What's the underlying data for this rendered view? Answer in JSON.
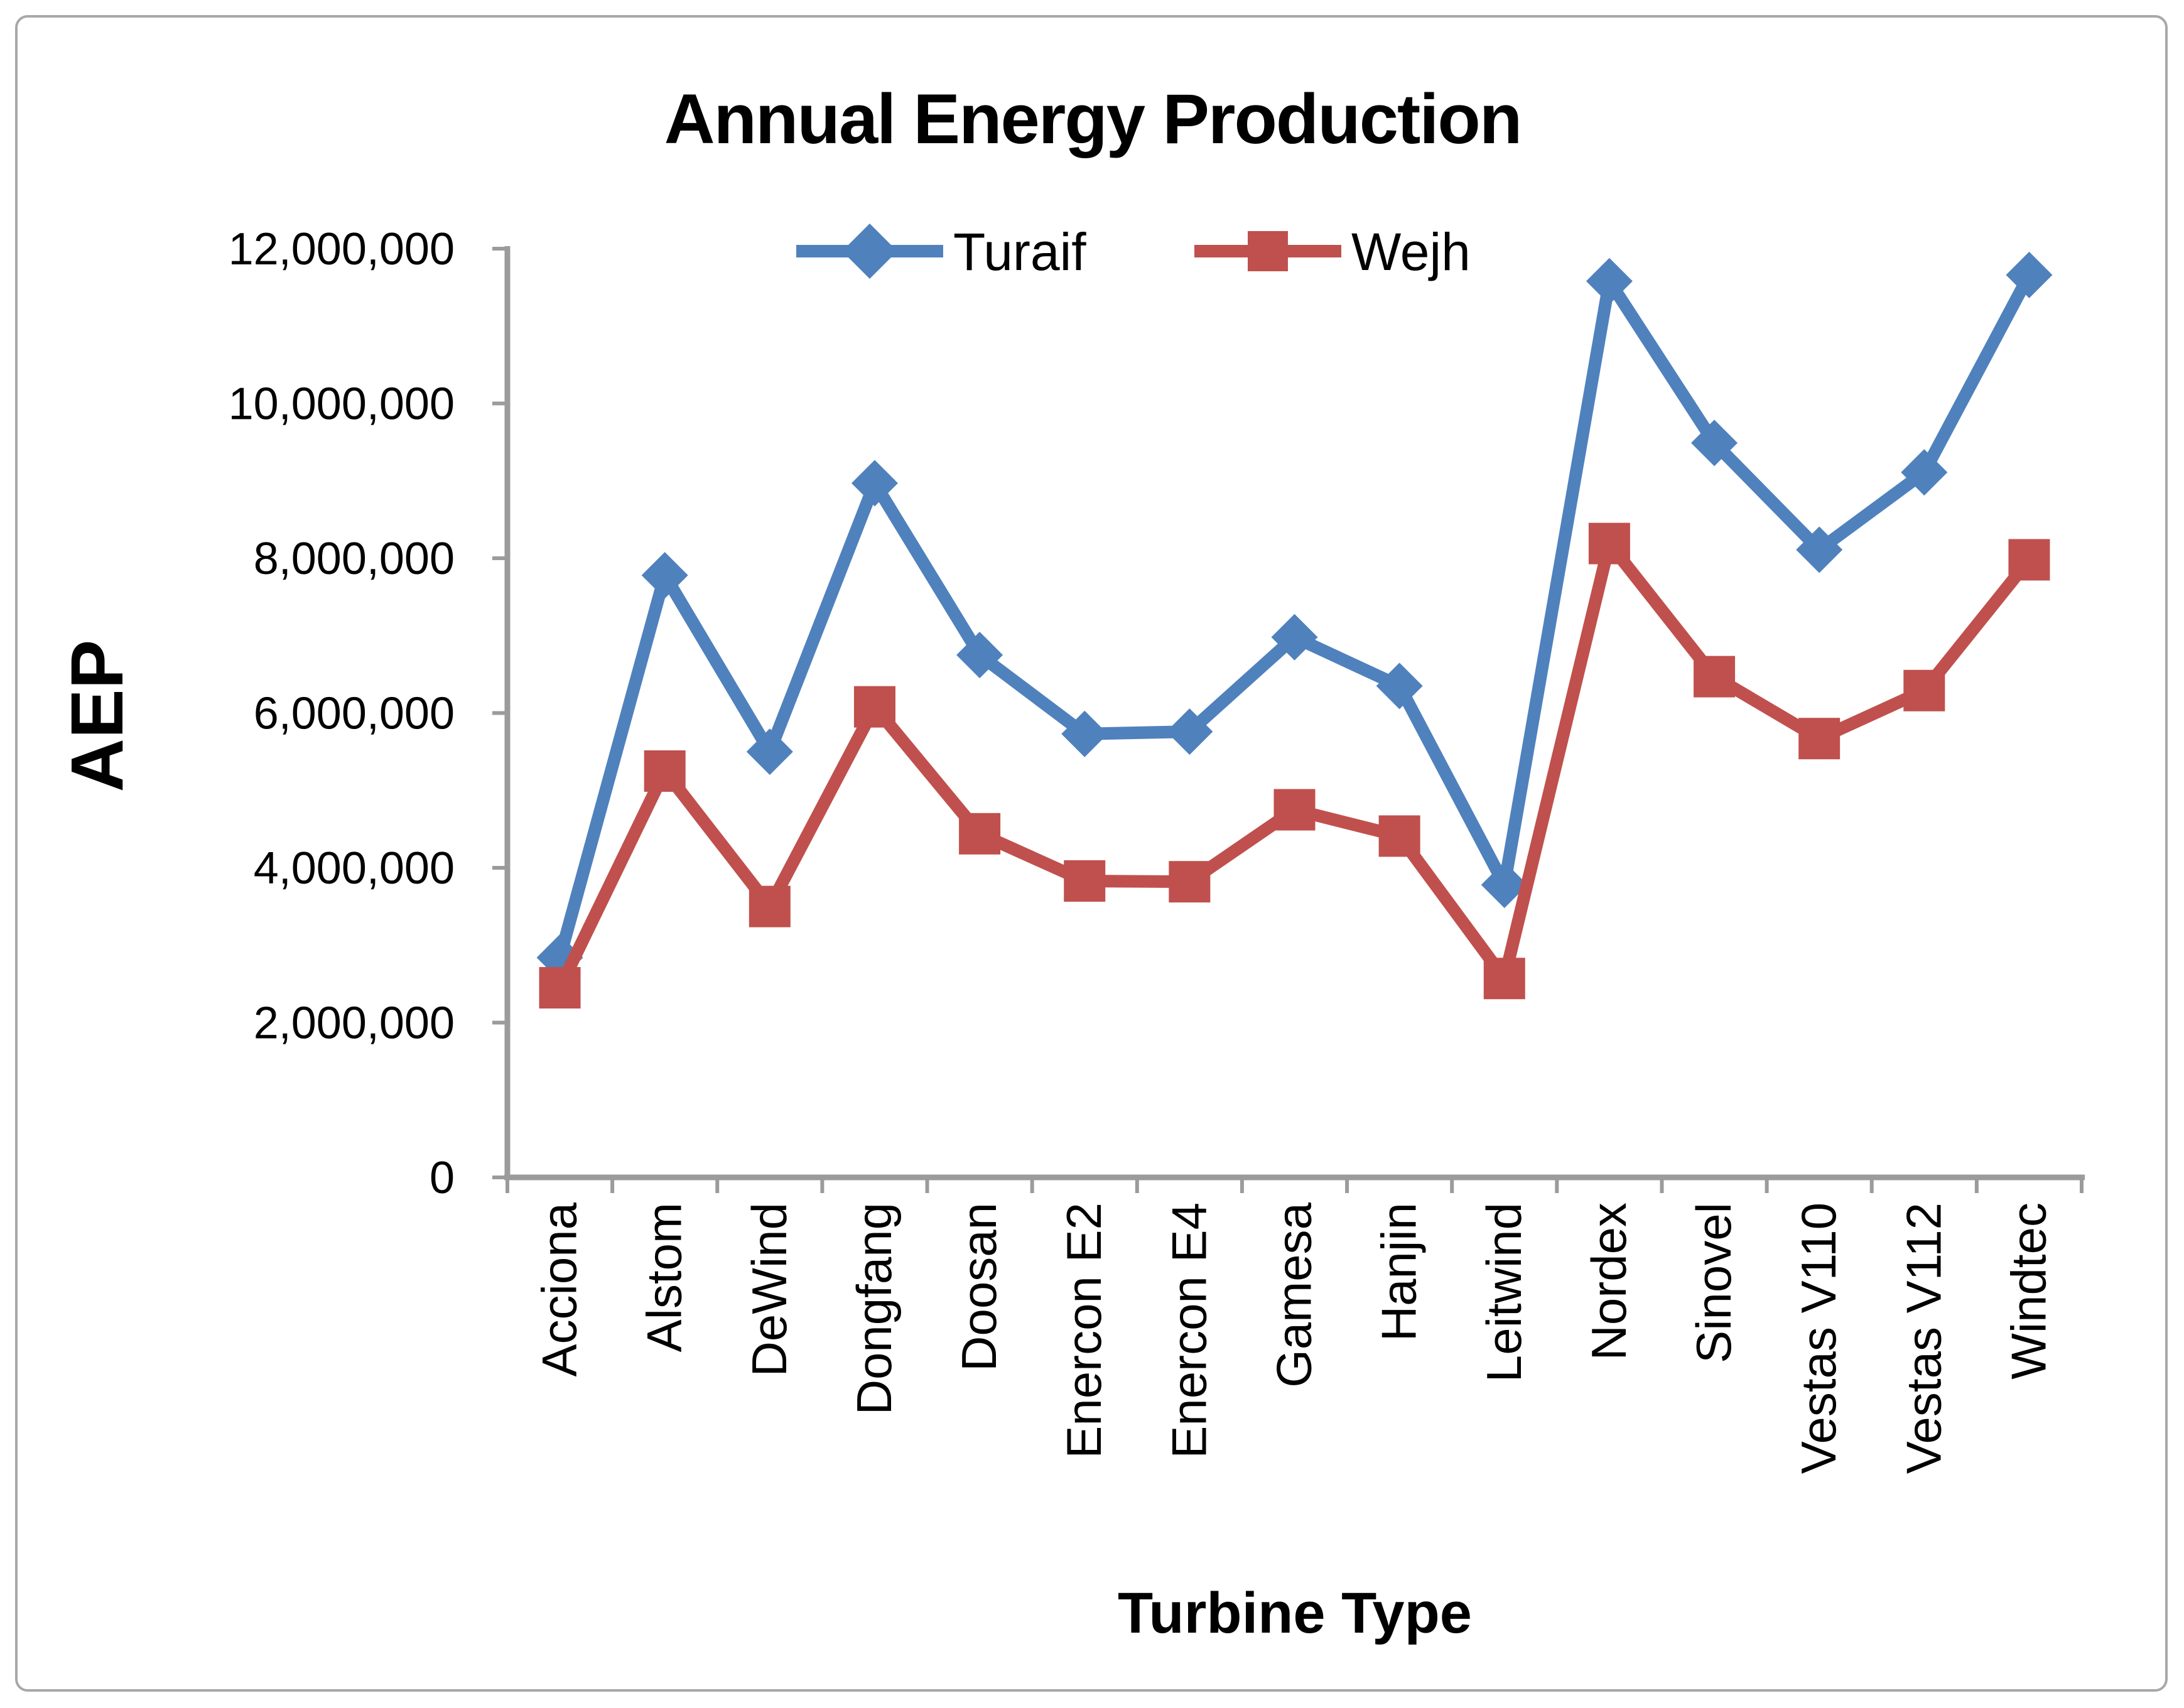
{
  "chart_data": {
    "type": "line",
    "title": "Annual Energy Production",
    "xlabel": "Turbine Type",
    "ylabel": "AEP",
    "ylim": [
      0,
      12000000
    ],
    "ytick_step": 2000000,
    "ytick_labels": [
      "0",
      "2,000,000",
      "4,000,000",
      "6,000,000",
      "8,000,000",
      "10,000,000",
      "12,000,000"
    ],
    "grid": false,
    "legend_position": "top-center",
    "axis_color": "#9b9b9b",
    "categories": [
      "Acciona",
      "Alstom",
      "DeWind",
      "Dongfang",
      "Doosan",
      "Enercon E2",
      "Enercon E4",
      "Gamesa",
      "Hanjin",
      "Leitwind",
      "Nordex",
      "Sinovel",
      "Vestas V110",
      "Vestas V112",
      "Windtec"
    ],
    "series": [
      {
        "name": "Turaif",
        "color": "#4F81BD",
        "marker": "diamond",
        "values": [
          2840000,
          7780000,
          5500000,
          8970000,
          6750000,
          5730000,
          5760000,
          6980000,
          6350000,
          3780000,
          11580000,
          9490000,
          8110000,
          9110000,
          11660000
        ]
      },
      {
        "name": "Wejh",
        "color": "#C0504D",
        "marker": "square",
        "values": [
          2450000,
          5250000,
          3500000,
          6080000,
          4440000,
          3830000,
          3820000,
          4750000,
          4410000,
          2570000,
          8190000,
          6470000,
          5670000,
          6290000,
          7980000
        ]
      }
    ]
  }
}
